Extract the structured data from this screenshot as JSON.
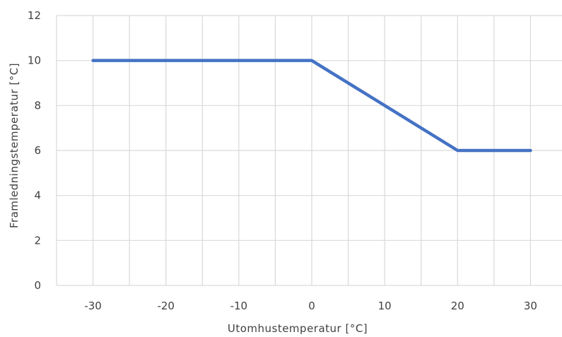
{
  "chart_data": {
    "type": "line",
    "title": "",
    "xlabel": "Utomhustemperatur  [°C]",
    "ylabel": "Framledningstemperatur [°C]",
    "xlim": [
      -35,
      35
    ],
    "ylim": [
      0,
      12
    ],
    "x_ticks": [
      -30,
      -20,
      -10,
      0,
      10,
      20,
      30
    ],
    "y_ticks": [
      0,
      2,
      4,
      6,
      8,
      10,
      12
    ],
    "grid": true,
    "legend": "none",
    "series": [
      {
        "color": "#4472c4",
        "points": [
          {
            "x": -30,
            "y": 10
          },
          {
            "x": 0,
            "y": 10
          },
          {
            "x": 20,
            "y": 6
          },
          {
            "x": 30,
            "y": 6
          }
        ]
      }
    ]
  }
}
